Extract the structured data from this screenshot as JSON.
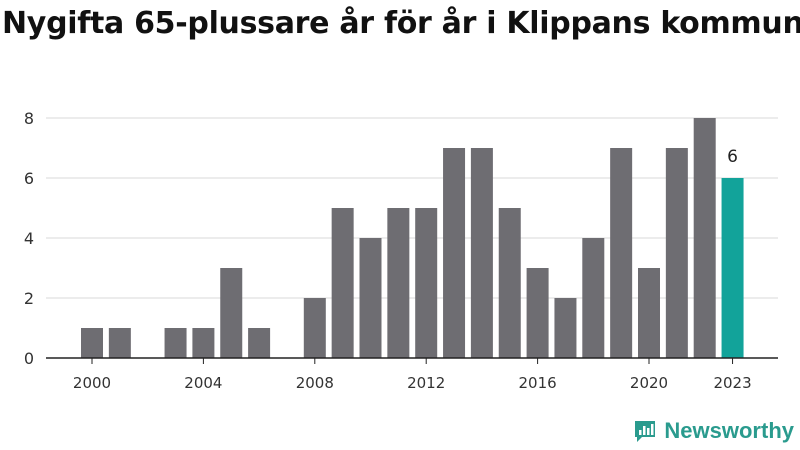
{
  "chart_data": {
    "type": "bar",
    "title": "Nygifta 65-plussare år för år i Klippans kommun",
    "x": [
      2000,
      2001,
      2002,
      2003,
      2004,
      2005,
      2006,
      2007,
      2008,
      2009,
      2010,
      2011,
      2012,
      2013,
      2014,
      2015,
      2016,
      2017,
      2018,
      2019,
      2020,
      2021,
      2022,
      2023
    ],
    "values": [
      1,
      1,
      0,
      1,
      1,
      3,
      1,
      0,
      2,
      5,
      4,
      5,
      5,
      7,
      7,
      5,
      3,
      2,
      4,
      7,
      3,
      7,
      8,
      6
    ],
    "x_tick_labels": [
      "2000",
      "2004",
      "2008",
      "2012",
      "2016",
      "2020",
      "2023"
    ],
    "y_ticks": [
      0,
      2,
      4,
      6,
      8
    ],
    "ylim": [
      0,
      8
    ],
    "highlight": {
      "x": 2023,
      "label": "6"
    },
    "grid": "horizontal",
    "colors": {
      "bar": "#6e6d72",
      "highlight": "#12a39a",
      "grid": "#d9d9d9",
      "axis": "#222222"
    }
  },
  "brand": {
    "name": "Newsworthy",
    "icon": "newsworthy-logo-icon",
    "color": "#2a9b8e"
  }
}
